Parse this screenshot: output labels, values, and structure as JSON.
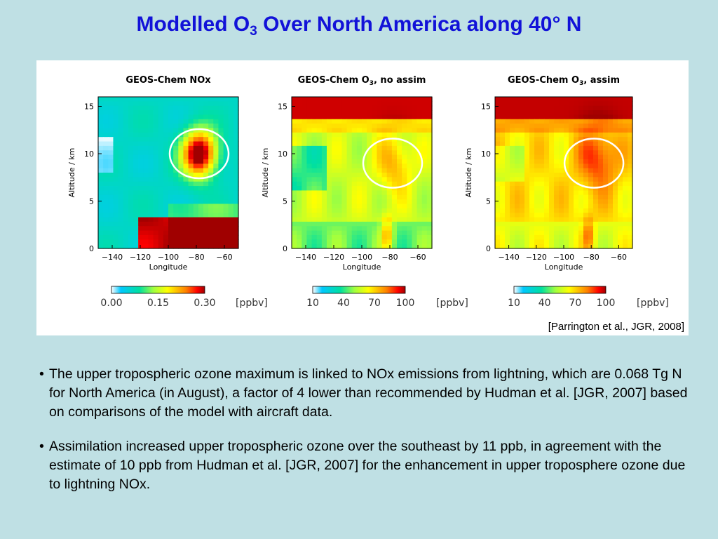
{
  "slide": {
    "title_prefix": "Modelled O",
    "title_sub": "3",
    "title_suffix": " Over North America along 40° N",
    "citation": "[Parrington et al., JGR, 2008]",
    "bullets": [
      "The upper tropospheric ozone maximum is linked to NOx emissions from lightning, which are 0.068 Tg N for North America (in August), a factor of 4 lower than recommended by Hudman et al. [JGR, 2007] based on comparisons of the model with aircraft data.",
      "Assimilation increased upper tropospheric ozone over the southeast by 11 ppb, in agreement with the estimate of 10 ppb from Hudman et al. [JGR, 2007] for the enhancement in upper troposphere ozone due to lightning NOx."
    ],
    "bullet_symbol": "•"
  },
  "chart_data": [
    {
      "type": "heatmap",
      "title": "GEOS-Chem NOx",
      "xlabel": "Longitude",
      "ylabel": "Altitude / km",
      "x_ticks": [
        "−140",
        "−120",
        "−100",
        "−80",
        "−60"
      ],
      "y_ticks": [
        "0",
        "5",
        "10",
        "15"
      ],
      "xlim": [
        -150,
        -50
      ],
      "ylim": [
        0,
        16
      ],
      "colorbar": {
        "ticks": [
          "0.00",
          "0.15",
          "0.30"
        ],
        "unit": "ppbv",
        "range": [
          0,
          0.3
        ]
      },
      "highlight": {
        "lon": -78,
        "alt": 10,
        "label": ""
      }
    },
    {
      "type": "heatmap",
      "title_prefix": "GEOS-Chem O",
      "title_sub": "3",
      "title_suffix": ", no assim",
      "xlabel": "Longitude",
      "ylabel": "Altitude / km",
      "x_ticks": [
        "−140",
        "−120",
        "−100",
        "−80",
        "−60"
      ],
      "y_ticks": [
        "0",
        "5",
        "10",
        "15"
      ],
      "xlim": [
        -150,
        -50
      ],
      "ylim": [
        0,
        16
      ],
      "colorbar": {
        "ticks": [
          "10",
          "40",
          "70",
          "100"
        ],
        "unit": "ppbv",
        "range": [
          10,
          100
        ]
      },
      "highlight": {
        "lon": -78,
        "alt": 9,
        "label": ""
      }
    },
    {
      "type": "heatmap",
      "title_prefix": "GEOS-Chem O",
      "title_sub": "3",
      "title_suffix": ", assim",
      "xlabel": "Longitude",
      "ylabel": "Altitude / km",
      "x_ticks": [
        "−140",
        "−120",
        "−100",
        "−80",
        "−60"
      ],
      "y_ticks": [
        "0",
        "5",
        "10",
        "15"
      ],
      "xlim": [
        -150,
        -50
      ],
      "ylim": [
        0,
        16
      ],
      "colorbar": {
        "ticks": [
          "10",
          "40",
          "70",
          "100"
        ],
        "unit": "ppbv",
        "range": [
          10,
          100
        ]
      },
      "highlight": {
        "lon": -78,
        "alt": 9,
        "label": ""
      }
    }
  ],
  "colors": {
    "title": "#1212d8",
    "background": "#bfe0e4",
    "highlight_circle": "#ffffff"
  }
}
